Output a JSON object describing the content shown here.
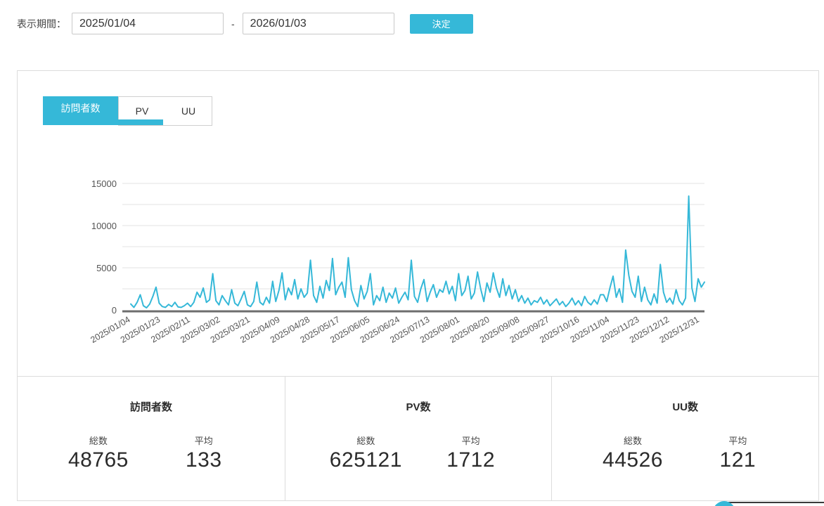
{
  "accent_color": "#35b8d8",
  "filter_bar": {
    "label": "表示期間：",
    "start_date": "2025/01/04",
    "separator": "-",
    "end_date": "2026/01/03",
    "submit_label": "決定"
  },
  "tabs": [
    {
      "label": "訪問者数",
      "active": true
    },
    {
      "label": "PV",
      "active": false
    },
    {
      "label": "UU",
      "active": false
    }
  ],
  "chart_data": {
    "type": "line",
    "title": "",
    "xlabel": "",
    "ylabel": "",
    "ylim": [
      0,
      15000
    ],
    "yticks": [
      0,
      5000,
      10000,
      15000
    ],
    "minor_gridlines": [
      2500,
      7500,
      12500
    ],
    "grid": true,
    "legend": "none",
    "line_color": "#35b8d8",
    "x_tick_labels": [
      "2025/01/04",
      "2025/01/23",
      "2025/02/11",
      "2025/03/02",
      "2025/03/21",
      "2025/04/09",
      "2025/04/28",
      "2025/05/17",
      "2025/06/05",
      "2025/06/24",
      "2025/07/13",
      "2025/08/01",
      "2025/08/20",
      "2025/09/08",
      "2025/09/27",
      "2025/10/16",
      "2025/11/04",
      "2025/11/23",
      "2025/12/12",
      "2025/12/31"
    ],
    "x_tick_day_interval": 19,
    "x_total_days": 365,
    "sample_day_step": 2,
    "values": [
      700,
      300,
      900,
      1800,
      500,
      250,
      700,
      1600,
      2700,
      800,
      400,
      300,
      650,
      400,
      900,
      350,
      300,
      500,
      800,
      400,
      900,
      2100,
      1500,
      2600,
      900,
      1200,
      4300,
      1100,
      600,
      1700,
      1100,
      600,
      2400,
      800,
      500,
      1300,
      2200,
      600,
      400,
      1000,
      3300,
      900,
      600,
      1500,
      800,
      3400,
      1000,
      2300,
      4400,
      1200,
      2600,
      1800,
      3600,
      1300,
      2500,
      1500,
      2000,
      5900,
      1700,
      900,
      2800,
      1400,
      3500,
      2300,
      6100,
      1800,
      2700,
      3300,
      1500,
      6200,
      2400,
      1100,
      400,
      2900,
      1300,
      2200,
      4300,
      600,
      1700,
      1100,
      2700,
      900,
      2000,
      1400,
      2600,
      800,
      1500,
      2100,
      1200,
      5900,
      1600,
      900,
      2500,
      3600,
      1000,
      2100,
      3000,
      1500,
      2400,
      2100,
      3400,
      1900,
      2800,
      1100,
      4300,
      1700,
      2300,
      4000,
      1300,
      2000,
      4500,
      2500,
      1000,
      3200,
      2100,
      4400,
      2600,
      1500,
      3700,
      1700,
      2900,
      1300,
      2400,
      1000,
      1700,
      800,
      1400,
      600,
      1100,
      900,
      1500,
      700,
      1200,
      500,
      900,
      1300,
      600,
      1000,
      400,
      800,
      1400,
      600,
      1100,
      500,
      1600,
      900,
      600,
      1200,
      700,
      1800,
      1800,
      1000,
      2600,
      4000,
      1500,
      2500,
      900,
      7100,
      4100,
      2200,
      1500,
      4000,
      1000,
      2700,
      1200,
      600,
      1900,
      800,
      5400,
      2100,
      900,
      1400,
      700,
      2400,
      1100,
      600,
      1400,
      13500,
      2600,
      1000,
      3700,
      2700,
      3300
    ]
  },
  "stats": [
    {
      "title": "訪問者数",
      "total_label": "総数",
      "total": "48765",
      "avg_label": "平均",
      "avg": "133"
    },
    {
      "title": "PV数",
      "total_label": "総数",
      "total": "625121",
      "avg_label": "平均",
      "avg": "1712"
    },
    {
      "title": "UU数",
      "total_label": "総数",
      "total": "44526",
      "avg_label": "平均",
      "avg": "121"
    }
  ]
}
